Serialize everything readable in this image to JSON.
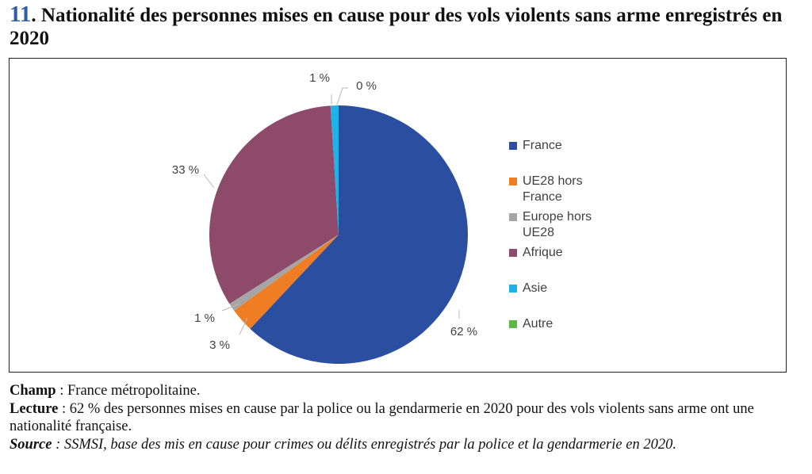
{
  "figure": {
    "number": "11",
    "title": ". Nationalité des personnes mises en cause pour des vols violents sans arme enregistrés en 2020"
  },
  "chart_data": {
    "type": "pie",
    "slices": [
      {
        "name": "France",
        "value": 62,
        "label": "62 %",
        "color": "#2a4ea0"
      },
      {
        "name": "UE28 hors France",
        "value": 3,
        "label": "3 %",
        "color": "#ee7d24"
      },
      {
        "name": "Europe hors UE28",
        "value": 1,
        "label": "1 %",
        "color": "#a5a5a5"
      },
      {
        "name": "Afrique",
        "value": 33,
        "label": "33 %",
        "color": "#8e4a6b"
      },
      {
        "name": "Asie",
        "value": 1,
        "label": "1 %",
        "color": "#1eb2e8"
      },
      {
        "name": "Autre",
        "value": 0,
        "label": "0 %",
        "color": "#5cb946"
      }
    ],
    "legend_position": "right",
    "legend": [
      {
        "lines": [
          "France"
        ],
        "color": "#2a4ea0"
      },
      {
        "lines": [
          "UE28 hors",
          "France"
        ],
        "color": "#ee7d24"
      },
      {
        "lines": [
          "Europe hors",
          "UE28"
        ],
        "color": "#a5a5a5"
      },
      {
        "lines": [
          "Afrique"
        ],
        "color": "#8e4a6b"
      },
      {
        "lines": [
          "Asie"
        ],
        "color": "#1eb2e8"
      },
      {
        "lines": [
          "Autre"
        ],
        "color": "#5cb946"
      }
    ]
  },
  "notes": {
    "champ_label": "Champ",
    "champ_text": " : France métropolitaine.",
    "lecture_label": "Lecture",
    "lecture_text": " : 62 % des personnes mises en cause par la police ou la gendarmerie en 2020 pour des vols violents sans arme ont une nationalité française.",
    "source_label": "Source",
    "source_text": " : SSMSI, base des mis en cause pour crimes ou délits enregistrés par la police et la gendarmerie en 2020."
  }
}
